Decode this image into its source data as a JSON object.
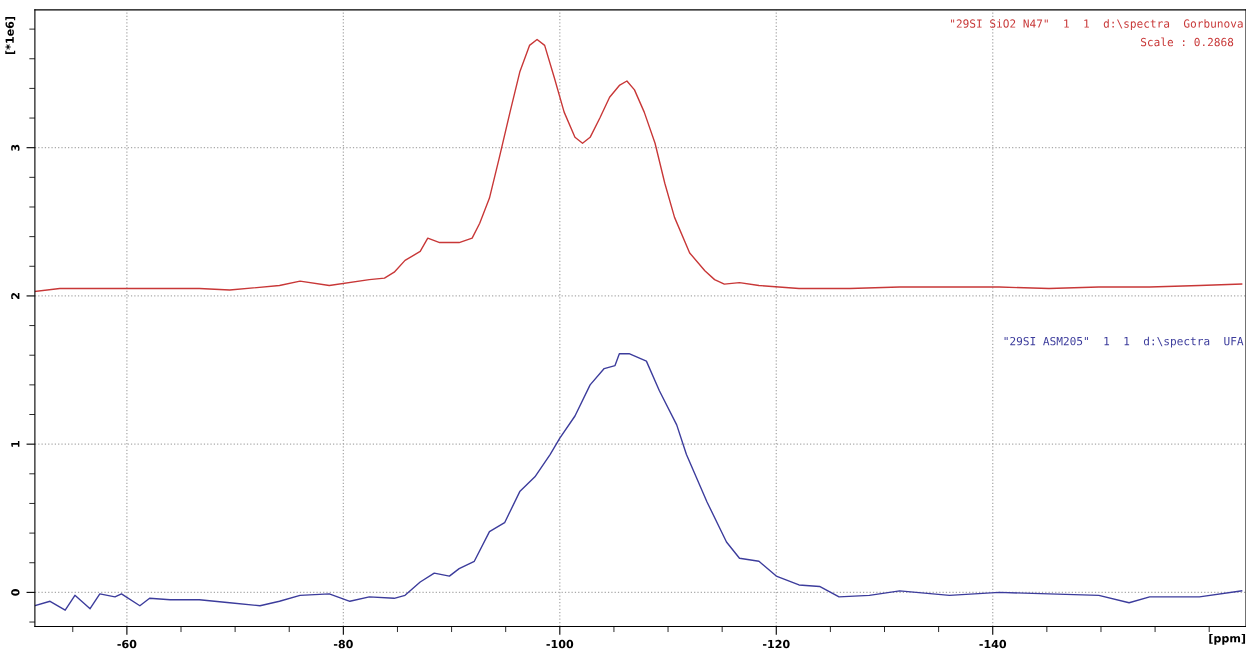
{
  "chart_data": {
    "type": "line",
    "xlabel": "[ppm]",
    "ylabel": "[*1e6]",
    "annotations": [
      "\"29SI SiO2 N47\"  1  1  d:\\spectra  Gorbunova",
      "Scale : 0.2868",
      "\"29SI ASM205\"  1  1  d:\\spectra  UFA"
    ],
    "series": [
      {
        "color": "#c83737",
        "x": [
          -51.5,
          -53.8,
          -57.5,
          -62.1,
          -66.7,
          -69.5,
          -74.1,
          -76.0,
          -78.7,
          -82.4,
          -83.8,
          -84.7,
          -85.7,
          -87.1,
          -87.8,
          -88.9,
          -90.7,
          -91.9,
          -92.6,
          -93.5,
          -94.4,
          -95.4,
          -96.3,
          -97.2,
          -97.9,
          -98.6,
          -99.5,
          -100.4,
          -101.4,
          -102.1,
          -102.8,
          -103.7,
          -104.6,
          -105.5,
          -106.2,
          -106.9,
          -107.8,
          -108.8,
          -109.7,
          -110.6,
          -112.0,
          -113.4,
          -114.3,
          -115.2,
          -116.6,
          -118.4,
          -122.1,
          -126.8,
          -131.4,
          -136.0,
          -140.6,
          -145.2,
          -149.8,
          -154.5,
          -159.1,
          -163.0
        ],
        "values": [
          2.03,
          2.05,
          2.05,
          2.05,
          2.05,
          2.04,
          2.07,
          2.1,
          2.07,
          2.11,
          2.12,
          2.16,
          2.24,
          2.3,
          2.39,
          2.36,
          2.36,
          2.39,
          2.49,
          2.66,
          2.93,
          3.24,
          3.51,
          3.69,
          3.73,
          3.69,
          3.47,
          3.24,
          3.07,
          3.03,
          3.07,
          3.2,
          3.34,
          3.42,
          3.45,
          3.39,
          3.24,
          3.03,
          2.76,
          2.53,
          2.29,
          2.17,
          2.11,
          2.08,
          2.09,
          2.07,
          2.05,
          2.05,
          2.06,
          2.06,
          2.06,
          2.05,
          2.06,
          2.06,
          2.07,
          2.08
        ]
      },
      {
        "color": "#3c3c9c",
        "x": [
          -51.5,
          -52.9,
          -54.3,
          -55.2,
          -56.6,
          -57.5,
          -58.9,
          -59.5,
          -61.2,
          -62.1,
          -64.0,
          -66.7,
          -69.5,
          -72.3,
          -74.1,
          -76.0,
          -78.7,
          -80.6,
          -82.4,
          -84.7,
          -85.7,
          -87.1,
          -88.4,
          -89.8,
          -90.7,
          -92.1,
          -93.5,
          -94.9,
          -96.3,
          -97.7,
          -99.1,
          -100.0,
          -101.4,
          -102.8,
          -104.1,
          -105.1,
          -105.5,
          -106.4,
          -108.0,
          -109.2,
          -110.8,
          -111.7,
          -113.6,
          -115.4,
          -116.6,
          -118.4,
          -120.0,
          -122.1,
          -124.0,
          -125.8,
          -128.6,
          -131.4,
          -136.0,
          -140.6,
          -145.2,
          -149.8,
          -152.6,
          -154.5,
          -159.1,
          -163.0
        ],
        "values": [
          -0.09,
          -0.06,
          -0.12,
          -0.02,
          -0.11,
          -0.01,
          -0.03,
          -0.01,
          -0.09,
          -0.04,
          -0.05,
          -0.05,
          -0.07,
          -0.09,
          -0.06,
          -0.02,
          -0.01,
          -0.06,
          -0.03,
          -0.04,
          -0.02,
          0.07,
          0.13,
          0.11,
          0.16,
          0.21,
          0.41,
          0.47,
          0.68,
          0.78,
          0.93,
          1.04,
          1.19,
          1.4,
          1.51,
          1.53,
          1.61,
          1.61,
          1.56,
          1.36,
          1.13,
          0.93,
          0.61,
          0.34,
          0.23,
          0.21,
          0.11,
          0.05,
          0.04,
          -0.03,
          -0.02,
          0.01,
          -0.02,
          0.0,
          -0.01,
          -0.02,
          -0.07,
          -0.03,
          -0.03,
          0.01
        ]
      }
    ],
    "xlim": [
      -51.5,
      -163.4
    ],
    "ylim": [
      -0.23,
      3.93
    ],
    "xticks": [
      {
        "value": -55,
        "label": null
      },
      -60,
      {
        "value": -65,
        "label": null
      },
      {
        "value": -70,
        "label": null
      },
      {
        "value": -75,
        "label": null
      },
      -80,
      {
        "value": -85,
        "label": null
      },
      {
        "value": -90,
        "label": null
      },
      {
        "value": -95,
        "label": null
      },
      -100,
      {
        "value": -105,
        "label": null
      },
      {
        "value": -110,
        "label": null
      },
      {
        "value": -115,
        "label": null
      },
      -120,
      {
        "value": -125,
        "label": null
      },
      {
        "value": -130,
        "label": null
      },
      {
        "value": -135,
        "label": null
      },
      -140,
      {
        "value": -145,
        "label": null
      },
      {
        "value": -150,
        "label": null
      },
      {
        "value": -155,
        "label": null
      },
      {
        "value": -160,
        "label": null
      }
    ],
    "yticks": [
      {
        "value": -0.2,
        "label": null
      },
      0,
      {
        "value": 0.2,
        "label": null
      },
      {
        "value": 0.4,
        "label": null
      },
      {
        "value": 0.6,
        "label": null
      },
      {
        "value": 0.8,
        "label": null
      },
      1,
      {
        "value": 1.2,
        "label": null
      },
      {
        "value": 1.4,
        "label": null
      },
      {
        "value": 1.6,
        "label": null
      },
      {
        "value": 1.8,
        "label": null
      },
      2,
      {
        "value": 2.2,
        "label": null
      },
      {
        "value": 2.4,
        "label": null
      },
      {
        "value": 2.6,
        "label": null
      },
      {
        "value": 2.8,
        "label": null
      },
      3,
      {
        "value": 3.2,
        "label": null
      },
      {
        "value": 3.4,
        "label": null
      },
      {
        "value": 3.6,
        "label": null
      },
      {
        "value": 3.8,
        "label": null
      }
    ],
    "grid": true,
    "line_style": "solid",
    "marker": "none"
  }
}
